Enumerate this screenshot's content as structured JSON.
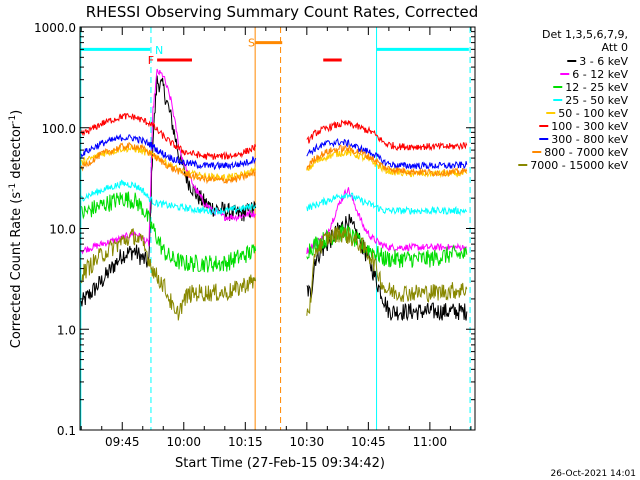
{
  "chart_data": {
    "type": "line",
    "title": "RHESSI Observing Summary Count Rates, Corrected",
    "xlabel": "Start Time (27-Feb-15 09:34:42)",
    "ylabel": "Corrected Count Rate (s⁻¹ detector⁻¹)",
    "ylabel_parts": {
      "main": "Corrected Count Rate (s",
      "sup1": "-1",
      "mid": " detector",
      "sup2": "-1",
      "end": ")"
    },
    "yscale": "log",
    "ylim": [
      0.1,
      1000
    ],
    "xlim_minutes": [
      34.7,
      131.0
    ],
    "x_ticks": [
      {
        "m": 45,
        "label": "09:45"
      },
      {
        "m": 60,
        "label": "10:00"
      },
      {
        "m": 75,
        "label": "10:15"
      },
      {
        "m": 90,
        "label": "10:30"
      },
      {
        "m": 105,
        "label": "10:45"
      },
      {
        "m": 120,
        "label": "11:00"
      }
    ],
    "y_ticks": [
      {
        "v": 0.1,
        "label": "0.1"
      },
      {
        "v": 1,
        "label": "1.0"
      },
      {
        "v": 10,
        "label": "10.0"
      },
      {
        "v": 100,
        "label": "100.0"
      },
      {
        "v": 1000,
        "label": "1000.0"
      }
    ],
    "legend_header": [
      "Det 1,3,5,6,7,9,",
      "Att 0"
    ],
    "legend_placement": "right",
    "series": [
      {
        "name": "3 - 6 keV",
        "color": "#000000",
        "points": [
          [
            35,
            1.8
          ],
          [
            40,
            3
          ],
          [
            45,
            5.5
          ],
          [
            48,
            6
          ],
          [
            50,
            5
          ],
          [
            51.5,
            4.5
          ],
          [
            52.5,
            80
          ],
          [
            53.5,
            290
          ],
          [
            55,
            250
          ],
          [
            57,
            120
          ],
          [
            59,
            50
          ],
          [
            61,
            30
          ],
          [
            63,
            22
          ],
          [
            65,
            18
          ],
          [
            67,
            16
          ],
          [
            70,
            15
          ],
          [
            72,
            14
          ],
          [
            74,
            14
          ],
          [
            76,
            15
          ],
          [
            77.5,
            16
          ],
          [
            null,
            null
          ],
          [
            90,
            2.5
          ],
          [
            91,
            2.2
          ],
          [
            92,
            5
          ],
          [
            95,
            7
          ],
          [
            98,
            10
          ],
          [
            100,
            12
          ],
          [
            102,
            9
          ],
          [
            105,
            5
          ],
          [
            107,
            3
          ],
          [
            110,
            1.5
          ],
          [
            115,
            1.5
          ],
          [
            120,
            1.5
          ],
          [
            125,
            1.5
          ],
          [
            129,
            1.5
          ]
        ]
      },
      {
        "name": "6 - 12 keV",
        "color": "#ff00ff",
        "points": [
          [
            35,
            6
          ],
          [
            40,
            7
          ],
          [
            45,
            8
          ],
          [
            48,
            9
          ],
          [
            50,
            8
          ],
          [
            51.5,
            7
          ],
          [
            52.5,
            150
          ],
          [
            53.5,
            360
          ],
          [
            55,
            330
          ],
          [
            57,
            180
          ],
          [
            59,
            60
          ],
          [
            61,
            35
          ],
          [
            63,
            24
          ],
          [
            65,
            18
          ],
          [
            67,
            15
          ],
          [
            70,
            13
          ],
          [
            73,
            13
          ],
          [
            76,
            14
          ],
          [
            77.5,
            14
          ],
          [
            null,
            null
          ],
          [
            90,
            6
          ],
          [
            92,
            7
          ],
          [
            95,
            9
          ],
          [
            98,
            18
          ],
          [
            100,
            25
          ],
          [
            102,
            16
          ],
          [
            104,
            10
          ],
          [
            106,
            8
          ],
          [
            108,
            7
          ],
          [
            110,
            6.5
          ],
          [
            115,
            6.5
          ],
          [
            120,
            6.5
          ],
          [
            125,
            6.5
          ],
          [
            129,
            6.5
          ]
        ]
      },
      {
        "name": "12 - 25 keV",
        "color": "#00dd00",
        "points": [
          [
            35,
            14
          ],
          [
            40,
            17
          ],
          [
            45,
            20
          ],
          [
            48,
            19
          ],
          [
            50,
            16
          ],
          [
            51.5,
            12
          ],
          [
            53,
            9
          ],
          [
            55,
            6
          ],
          [
            57,
            5
          ],
          [
            60,
            4.5
          ],
          [
            65,
            4.5
          ],
          [
            70,
            4.5
          ],
          [
            75,
            5.5
          ],
          [
            77.5,
            6
          ],
          [
            null,
            null
          ],
          [
            90,
            6
          ],
          [
            92,
            7
          ],
          [
            95,
            8
          ],
          [
            98,
            9
          ],
          [
            100,
            9
          ],
          [
            103,
            7
          ],
          [
            106,
            6
          ],
          [
            109,
            5
          ],
          [
            112,
            5
          ],
          [
            115,
            5
          ],
          [
            120,
            5
          ],
          [
            125,
            5.5
          ],
          [
            129,
            5.5
          ]
        ]
      },
      {
        "name": "25 - 50 keV",
        "color": "#00ffff",
        "points": [
          [
            35,
            20
          ],
          [
            40,
            24
          ],
          [
            45,
            28
          ],
          [
            48,
            27
          ],
          [
            50,
            24
          ],
          [
            51.5,
            20
          ],
          [
            53,
            18
          ],
          [
            56,
            17
          ],
          [
            60,
            16
          ],
          [
            65,
            15
          ],
          [
            70,
            15
          ],
          [
            75,
            16
          ],
          [
            77.5,
            17
          ],
          [
            null,
            null
          ],
          [
            90,
            16
          ],
          [
            92,
            17
          ],
          [
            95,
            19
          ],
          [
            98,
            21
          ],
          [
            100,
            22
          ],
          [
            103,
            19
          ],
          [
            106,
            17
          ],
          [
            109,
            15
          ],
          [
            112,
            15
          ],
          [
            115,
            15
          ],
          [
            120,
            15
          ],
          [
            125,
            15
          ],
          [
            129,
            15
          ]
        ]
      },
      {
        "name": "50 - 100 keV",
        "color": "#ffcc00",
        "points": [
          [
            35,
            45
          ],
          [
            40,
            55
          ],
          [
            45,
            62
          ],
          [
            48,
            62
          ],
          [
            50,
            58
          ],
          [
            52,
            55
          ],
          [
            54,
            50
          ],
          [
            57,
            42
          ],
          [
            60,
            36
          ],
          [
            65,
            33
          ],
          [
            70,
            32
          ],
          [
            73,
            33
          ],
          [
            76,
            36
          ],
          [
            77.5,
            38
          ],
          [
            null,
            null
          ],
          [
            90,
            38
          ],
          [
            92,
            45
          ],
          [
            95,
            52
          ],
          [
            98,
            56
          ],
          [
            100,
            57
          ],
          [
            103,
            52
          ],
          [
            106,
            46
          ],
          [
            109,
            38
          ],
          [
            112,
            36
          ],
          [
            115,
            35
          ],
          [
            120,
            35
          ],
          [
            125,
            35
          ],
          [
            129,
            35
          ]
        ]
      },
      {
        "name": "100 - 300 keV",
        "color": "#ff0000",
        "points": [
          [
            35,
            85
          ],
          [
            40,
            110
          ],
          [
            45,
            130
          ],
          [
            48,
            128
          ],
          [
            50,
            118
          ],
          [
            52,
            110
          ],
          [
            54,
            90
          ],
          [
            57,
            70
          ],
          [
            60,
            58
          ],
          [
            65,
            52
          ],
          [
            70,
            52
          ],
          [
            73,
            54
          ],
          [
            76,
            60
          ],
          [
            77.5,
            65
          ],
          [
            null,
            null
          ],
          [
            90,
            72
          ],
          [
            92,
            88
          ],
          [
            95,
            100
          ],
          [
            98,
            108
          ],
          [
            100,
            110
          ],
          [
            103,
            100
          ],
          [
            106,
            90
          ],
          [
            109,
            70
          ],
          [
            112,
            65
          ],
          [
            115,
            65
          ],
          [
            120,
            65
          ],
          [
            125,
            65
          ],
          [
            129,
            67
          ]
        ]
      },
      {
        "name": "300 - 800 keV",
        "color": "#0000ff",
        "points": [
          [
            35,
            55
          ],
          [
            40,
            70
          ],
          [
            45,
            80
          ],
          [
            48,
            79
          ],
          [
            50,
            74
          ],
          [
            52,
            68
          ],
          [
            54,
            58
          ],
          [
            57,
            50
          ],
          [
            60,
            45
          ],
          [
            65,
            42
          ],
          [
            70,
            42
          ],
          [
            73,
            43
          ],
          [
            76,
            46
          ],
          [
            77.5,
            50
          ],
          [
            null,
            null
          ],
          [
            90,
            55
          ],
          [
            92,
            62
          ],
          [
            95,
            70
          ],
          [
            98,
            72
          ],
          [
            100,
            70
          ],
          [
            103,
            62
          ],
          [
            106,
            56
          ],
          [
            109,
            45
          ],
          [
            112,
            42
          ],
          [
            115,
            42
          ],
          [
            120,
            42
          ],
          [
            125,
            42
          ],
          [
            129,
            43
          ]
        ]
      },
      {
        "name": "800 - 7000 keV",
        "color": "#ff8800",
        "points": [
          [
            35,
            40
          ],
          [
            40,
            55
          ],
          [
            45,
            65
          ],
          [
            48,
            66
          ],
          [
            50,
            62
          ],
          [
            52,
            55
          ],
          [
            54,
            48
          ],
          [
            57,
            40
          ],
          [
            60,
            35
          ],
          [
            65,
            31
          ],
          [
            70,
            30
          ],
          [
            73,
            31
          ],
          [
            76,
            34
          ],
          [
            77.5,
            36
          ],
          [
            null,
            null
          ],
          [
            90,
            40
          ],
          [
            92,
            50
          ],
          [
            95,
            58
          ],
          [
            98,
            62
          ],
          [
            100,
            62
          ],
          [
            103,
            57
          ],
          [
            106,
            50
          ],
          [
            109,
            40
          ],
          [
            112,
            38
          ],
          [
            115,
            37
          ],
          [
            120,
            36
          ],
          [
            125,
            36
          ],
          [
            129,
            37
          ]
        ]
      },
      {
        "name": "7000 - 15000 keV",
        "color": "#888800",
        "points": [
          [
            35,
            3.5
          ],
          [
            40,
            5.5
          ],
          [
            45,
            7.5
          ],
          [
            48,
            8.5
          ],
          [
            50,
            7
          ],
          [
            51.5,
            5
          ],
          [
            53,
            3.5
          ],
          [
            55,
            2.8
          ],
          [
            57,
            1.8
          ],
          [
            58,
            1.3
          ],
          [
            59,
            1.6
          ],
          [
            61,
            2.2
          ],
          [
            63,
            2.3
          ],
          [
            66,
            2.3
          ],
          [
            70,
            2.3
          ],
          [
            73,
            2.5
          ],
          [
            75,
            2.8
          ],
          [
            77.5,
            3
          ],
          [
            null,
            null
          ],
          [
            90,
            1.5
          ],
          [
            91,
            1.8
          ],
          [
            92,
            6
          ],
          [
            95,
            8
          ],
          [
            98,
            9
          ],
          [
            100,
            8.5
          ],
          [
            103,
            7
          ],
          [
            106,
            5
          ],
          [
            109,
            2.5
          ],
          [
            112,
            2.3
          ],
          [
            115,
            2.3
          ],
          [
            120,
            2.3
          ],
          [
            125,
            2.4
          ],
          [
            129,
            2.5
          ]
        ]
      }
    ],
    "state_bars": [
      {
        "color": "#00ffff",
        "x0": 34.7,
        "x1": 51.8,
        "v": 600
      },
      {
        "color": "#00ffff",
        "x0": 107,
        "x1": 129.5,
        "v": 600
      },
      {
        "color": "#ff0000",
        "x0": 53.5,
        "x1": 62,
        "v": 470,
        "label": "F",
        "label_x": 52
      },
      {
        "color": "#ff8800",
        "x0": 77.5,
        "x1": 84,
        "v": 700,
        "label": "S",
        "label_x": 76.5
      },
      {
        "color": "#ff0000",
        "x0": 94,
        "x1": 98.5,
        "v": 470
      }
    ],
    "state_labels": [
      {
        "text": "N",
        "color": "#00ffff",
        "x": 53,
        "v": 590
      }
    ],
    "vlines": [
      {
        "x": 34.9,
        "color": "#00ffff",
        "dash": false
      },
      {
        "x": 52.0,
        "color": "#00ffff",
        "dash": true
      },
      {
        "x": 77.4,
        "color": "#ff8800",
        "dash": false
      },
      {
        "x": 83.6,
        "color": "#ff8800",
        "dash": true
      },
      {
        "x": 107.0,
        "color": "#00ffff",
        "dash": false
      },
      {
        "x": 129.8,
        "color": "#00ffff",
        "dash": true
      }
    ]
  },
  "timestamp": "26-Oct-2021 14:01"
}
